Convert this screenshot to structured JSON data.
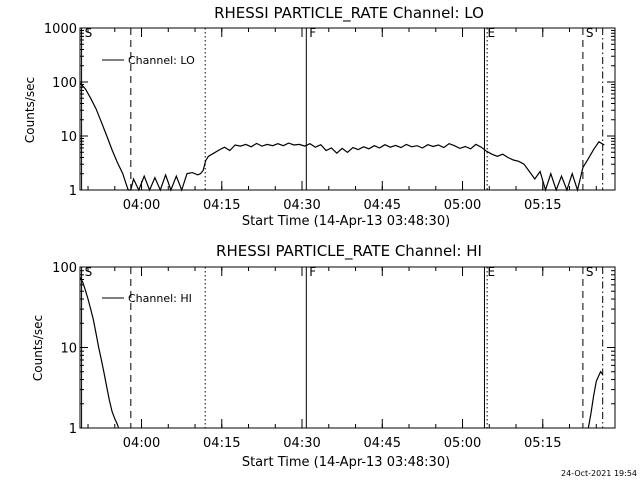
{
  "chart_data": [
    {
      "type": "line",
      "title": "RHESSI PARTICLE_RATE Channel: LO",
      "xlabel": "Start Time (14-Apr-13 03:48:30)",
      "ylabel": "Counts/sec",
      "y_scale": "log",
      "ylim": [
        1,
        1000
      ],
      "xlim_minutes_after_start": [
        0,
        100
      ],
      "x_tick_labels": [
        "04:00",
        "04:15",
        "04:30",
        "04:45",
        "05:00",
        "05:15"
      ],
      "y_tick_labels": [
        "1",
        "10",
        "100",
        "1000"
      ],
      "legend": {
        "label": "Channel: LO",
        "position": "top-left"
      },
      "markers": [
        {
          "label": "S",
          "minute": 0.3,
          "style": "solid"
        },
        {
          "label": "",
          "minute": 9.5,
          "style": "dashed"
        },
        {
          "label": "",
          "minute": 23.4,
          "style": "dotted"
        },
        {
          "label": "F",
          "minute": 42.3,
          "style": "solid"
        },
        {
          "label": "E",
          "minute": 75.6,
          "style": "solid"
        },
        {
          "label": "",
          "minute": 76.1,
          "style": "dotted"
        },
        {
          "label": "S",
          "minute": 94.0,
          "style": "dashed"
        },
        {
          "label": "",
          "minute": 97.7,
          "style": "dashdot"
        }
      ],
      "series": [
        {
          "name": "Channel: LO",
          "x": [
            0,
            1,
            2,
            3,
            4,
            5,
            6,
            7,
            8,
            8.5,
            9,
            9.5,
            10,
            11,
            12,
            13,
            14,
            15,
            16,
            17,
            18,
            19,
            20,
            21,
            22,
            22.5,
            23,
            23.5,
            24,
            25,
            26,
            27,
            28,
            29,
            30,
            31,
            32,
            33,
            34,
            35,
            36,
            37,
            38,
            39,
            40,
            41,
            42,
            43,
            44,
            45,
            46,
            47,
            48,
            49,
            50,
            51,
            52,
            53,
            54,
            55,
            56,
            57,
            58,
            59,
            60,
            61,
            62,
            63,
            64,
            65,
            66,
            67,
            68,
            69,
            70,
            71,
            72,
            73,
            74,
            75,
            76,
            77,
            78,
            79,
            80,
            81,
            82,
            83,
            84,
            85,
            86,
            87,
            88,
            89,
            90,
            91,
            92,
            93,
            94,
            95,
            96,
            97,
            98
          ],
          "y": [
            95,
            75,
            50,
            32,
            18,
            10,
            5.5,
            3.2,
            2.0,
            1.4,
            1.0,
            1.0,
            1.6,
            1.0,
            1.8,
            1.0,
            1.7,
            1.0,
            1.9,
            1.0,
            1.8,
            1.0,
            2.0,
            2.1,
            1.9,
            2.0,
            2.3,
            3.5,
            4.2,
            4.8,
            5.5,
            6.2,
            5.4,
            6.8,
            6.5,
            7.0,
            6.3,
            7.3,
            6.5,
            7.0,
            6.6,
            7.2,
            6.6,
            7.4,
            6.8,
            7.0,
            6.5,
            7.2,
            6.2,
            6.9,
            5.4,
            6.0,
            4.8,
            5.9,
            5.0,
            6.1,
            5.6,
            6.3,
            5.8,
            6.6,
            6.0,
            6.9,
            6.2,
            6.7,
            6.1,
            7.0,
            6.3,
            6.6,
            6.0,
            6.9,
            6.4,
            6.8,
            6.1,
            7.2,
            6.6,
            5.9,
            6.4,
            5.8,
            7.0,
            6.2,
            5.2,
            4.6,
            4.2,
            4.6,
            4.0,
            3.6,
            3.4,
            3.0,
            2.2,
            1.6,
            2.2,
            1.0,
            2.0,
            1.0,
            1.8,
            1.0,
            2.0,
            1.0,
            2.6,
            3.8,
            5.6,
            7.8,
            6.8
          ]
        }
      ]
    },
    {
      "type": "line",
      "title": "RHESSI PARTICLE_RATE Channel: HI",
      "xlabel": "Start Time (14-Apr-13 03:48:30)",
      "ylabel": "Counts/sec",
      "y_scale": "log",
      "ylim": [
        1,
        100
      ],
      "xlim_minutes_after_start": [
        0,
        100
      ],
      "x_tick_labels": [
        "04:00",
        "04:15",
        "04:30",
        "04:45",
        "05:00",
        "05:15"
      ],
      "y_tick_labels": [
        "1",
        "10",
        "100"
      ],
      "legend": {
        "label": "Channel: HI",
        "position": "top-left"
      },
      "markers": [
        {
          "label": "S",
          "minute": 0.3,
          "style": "solid"
        },
        {
          "label": "",
          "minute": 9.5,
          "style": "dashed"
        },
        {
          "label": "",
          "minute": 23.4,
          "style": "dotted"
        },
        {
          "label": "F",
          "minute": 42.3,
          "style": "solid"
        },
        {
          "label": "E",
          "minute": 75.6,
          "style": "solid"
        },
        {
          "label": "",
          "minute": 76.1,
          "style": "dotted"
        },
        {
          "label": "S",
          "minute": 94.0,
          "style": "dashed"
        },
        {
          "label": "",
          "minute": 97.7,
          "style": "dashdot"
        }
      ],
      "series": [
        {
          "name": "Channel: HI",
          "x": [
            0,
            0.5,
            1,
            1.5,
            2,
            2.5,
            3,
            3.5,
            4,
            4.5,
            5,
            5.5,
            6,
            6.5,
            7,
            7.2
          ],
          "y": [
            75,
            65,
            52,
            40,
            30,
            22,
            15,
            10,
            7,
            4.8,
            3.2,
            2.2,
            1.6,
            1.3,
            1.1,
            1.0
          ]
        },
        {
          "name": "Channel: HI",
          "x": [
            95,
            95.5,
            96,
            96.5,
            97,
            97.3,
            97.7
          ],
          "y": [
            1.0,
            1.5,
            2.5,
            3.8,
            4.5,
            5.0,
            4.6
          ]
        }
      ]
    }
  ],
  "footer": {
    "timestamp": "24-Oct-2021 19:54"
  }
}
